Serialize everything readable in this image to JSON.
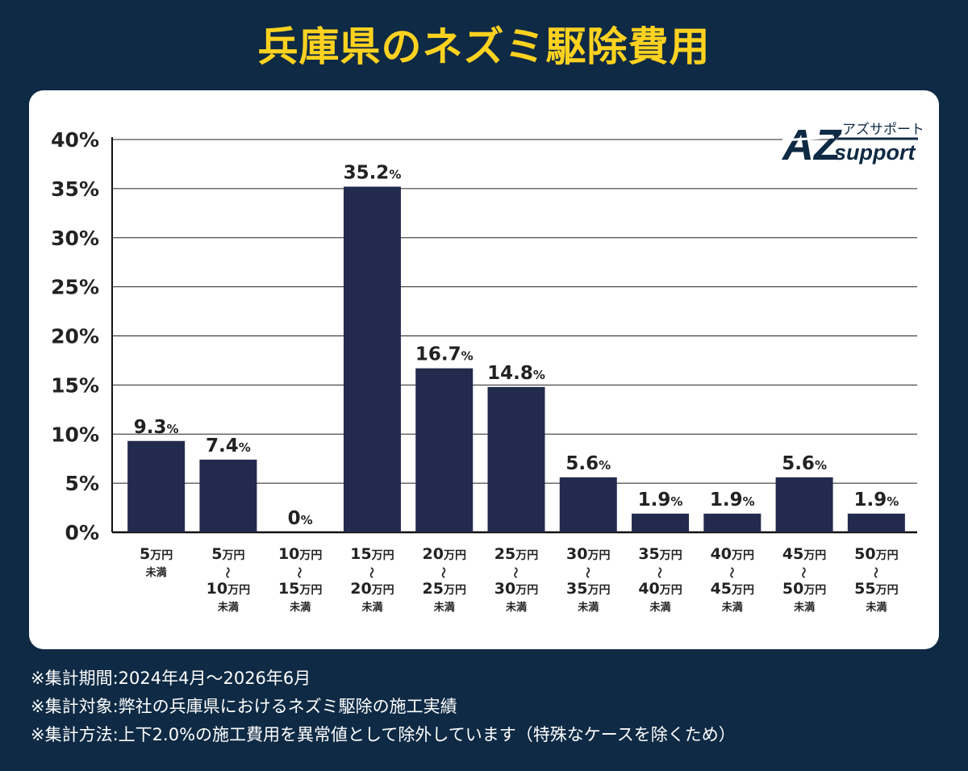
{
  "title": "兵庫県のネズミ駆除費用",
  "brand": {
    "logo_mark": "AZ",
    "logo_kana": "アズサポート",
    "logo_word": "support"
  },
  "colors": {
    "background": "#0f2a44",
    "title": "#ffd21f",
    "bar": "#222b4e",
    "card": "#ffffff"
  },
  "chart_data": {
    "type": "bar",
    "y_tick_labels": [
      "0%",
      "5%",
      "10%",
      "15%",
      "20%",
      "25%",
      "30%",
      "35%",
      "40%"
    ],
    "ylim": [
      0,
      40
    ],
    "grid": true,
    "categories": [
      {
        "lines": [
          "5万円"
        ],
        "sub": "未満"
      },
      {
        "lines": [
          "5万円",
          "〜",
          "10万円"
        ],
        "sub": "未満"
      },
      {
        "lines": [
          "10万円",
          "〜",
          "15万円"
        ],
        "sub": "未満"
      },
      {
        "lines": [
          "15万円",
          "〜",
          "20万円"
        ],
        "sub": "未満"
      },
      {
        "lines": [
          "20万円",
          "〜",
          "25万円"
        ],
        "sub": "未満"
      },
      {
        "lines": [
          "25万円",
          "〜",
          "30万円"
        ],
        "sub": "未満"
      },
      {
        "lines": [
          "30万円",
          "〜",
          "35万円"
        ],
        "sub": "未満"
      },
      {
        "lines": [
          "35万円",
          "〜",
          "40万円"
        ],
        "sub": "未満"
      },
      {
        "lines": [
          "40万円",
          "〜",
          "45万円"
        ],
        "sub": "未満"
      },
      {
        "lines": [
          "45万円",
          "〜",
          "50万円"
        ],
        "sub": "未満"
      },
      {
        "lines": [
          "50万円",
          "〜",
          "55万円"
        ],
        "sub": "未満"
      }
    ],
    "values": [
      9.3,
      7.4,
      0,
      35.2,
      16.7,
      14.8,
      5.6,
      1.9,
      1.9,
      5.6,
      1.9
    ],
    "value_labels": [
      "9.3",
      "7.4",
      "0",
      "35.2",
      "16.7",
      "14.8",
      "5.6",
      "1.9",
      "1.9",
      "5.6",
      "1.9"
    ],
    "value_unit": "%"
  },
  "notes": [
    "※集計期間:2024年4月〜2026年6月",
    "※集計対象:弊社の兵庫県におけるネズミ駆除の施工実績",
    "※集計方法:上下2.0%の施工費用を異常値として除外しています（特殊なケースを除くため）"
  ]
}
